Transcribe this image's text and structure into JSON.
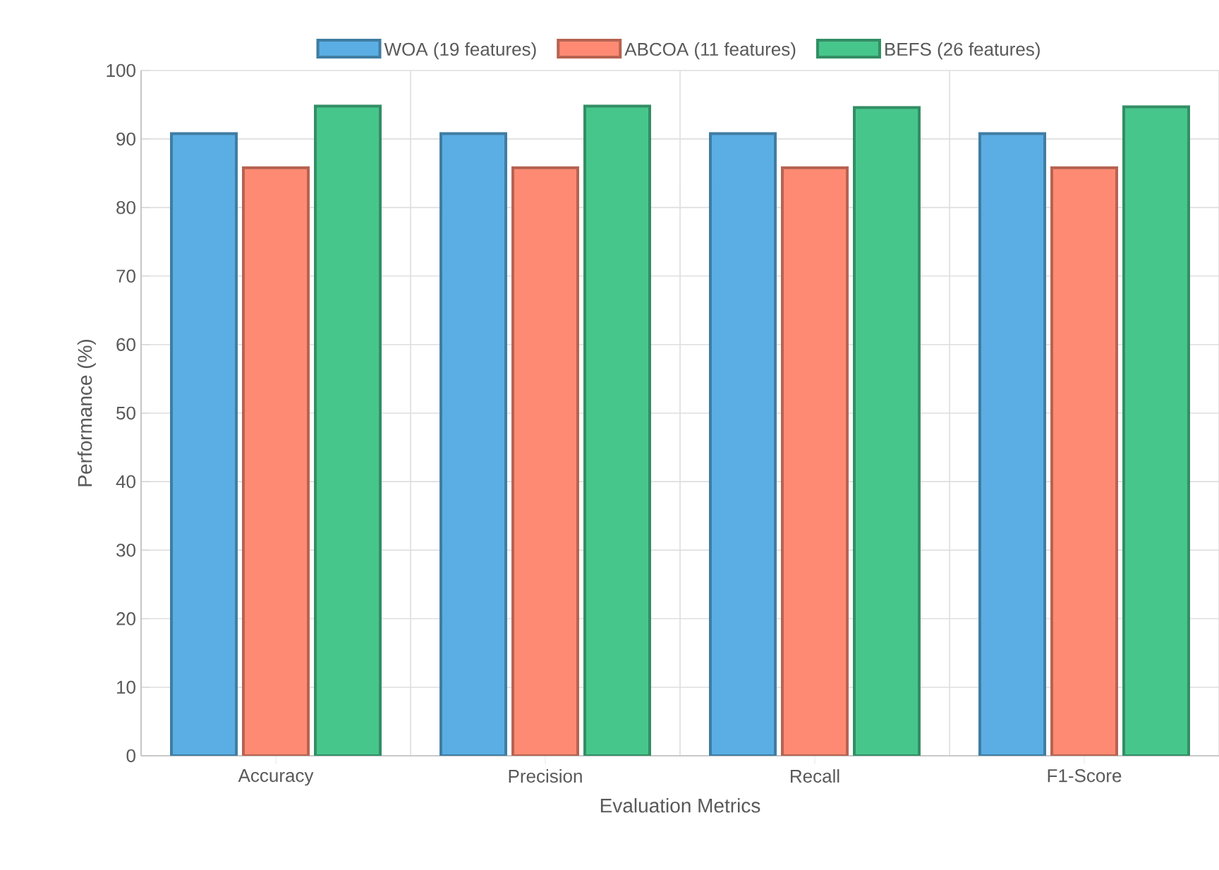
{
  "chart_data": {
    "type": "bar",
    "xlabel": "Evaluation Metrics",
    "ylabel": "Performance (%)",
    "categories": [
      "Accuracy",
      "Precision",
      "Recall",
      "F1-Score"
    ],
    "series": [
      {
        "name": "WOA (19 features)",
        "color": "#5aaee3",
        "values": [
          90.8,
          90.8,
          90.8,
          90.8
        ]
      },
      {
        "name": "ABCOA (11 features)",
        "color": "#ff8a73",
        "values": [
          85.8,
          85.8,
          85.8,
          85.8
        ]
      },
      {
        "name": "BEFS (26 features)",
        "color": "#47c68c",
        "values": [
          94.8,
          94.8,
          94.6,
          94.7
        ]
      }
    ],
    "ylim": [
      0,
      100
    ],
    "yticks": [
      0,
      10,
      20,
      30,
      40,
      50,
      60,
      70,
      80,
      90,
      100
    ],
    "grid": true,
    "legend": "top"
  }
}
